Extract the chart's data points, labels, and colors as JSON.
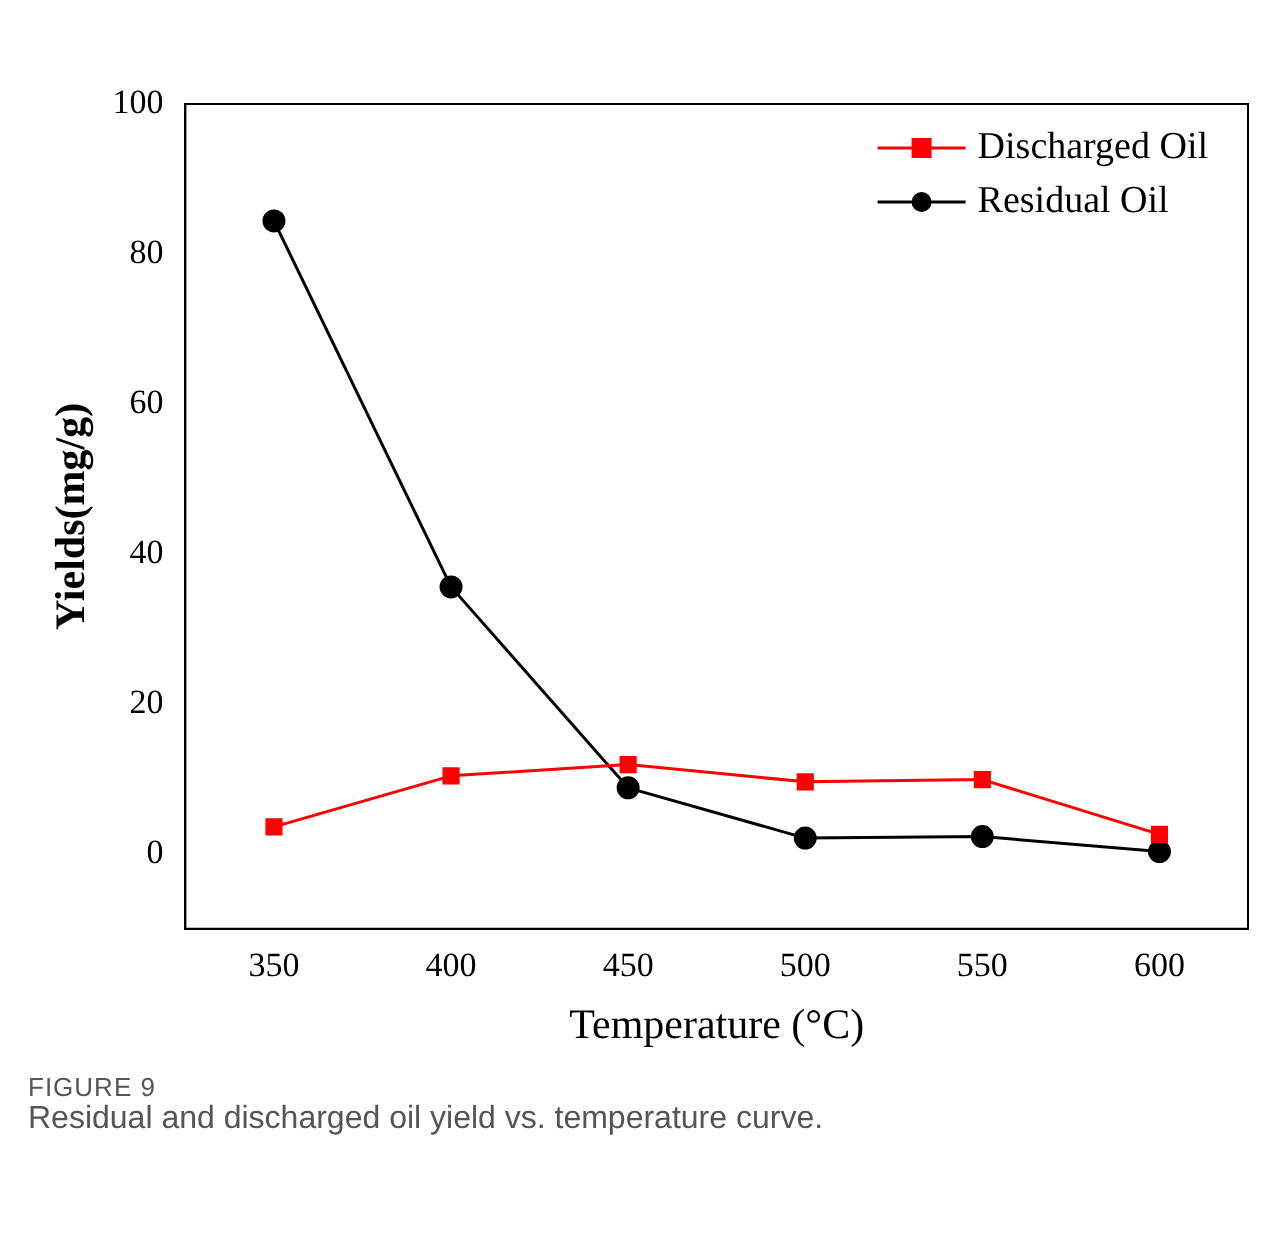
{
  "chart_data": {
    "type": "line",
    "xlabel": "Temperature (°C)",
    "ylabel": "Yields(mg/g)",
    "x": [
      350,
      400,
      450,
      500,
      550,
      600
    ],
    "series": [
      {
        "name": "Discharged Oil",
        "color": "#ff0000",
        "marker": "square",
        "values": [
          3.6,
          10.4,
          11.9,
          9.6,
          9.9,
          2.6
        ]
      },
      {
        "name": "Residual Oil",
        "color": "#000000",
        "marker": "circle",
        "values": [
          84.4,
          35.6,
          8.8,
          2.1,
          2.3,
          0.3
        ]
      }
    ],
    "xlim": [
      325,
      625
    ],
    "xticks": [
      350,
      400,
      450,
      500,
      550,
      600
    ],
    "ylim": [
      -10,
      100
    ],
    "yticks": [
      0,
      20,
      40,
      60,
      80,
      100
    ],
    "grid": false,
    "legend": "top right",
    "line_style": "solid",
    "annotations": [
      "FIGURE 9",
      "Residual and discharged oil yield vs. temperature curve."
    ]
  }
}
